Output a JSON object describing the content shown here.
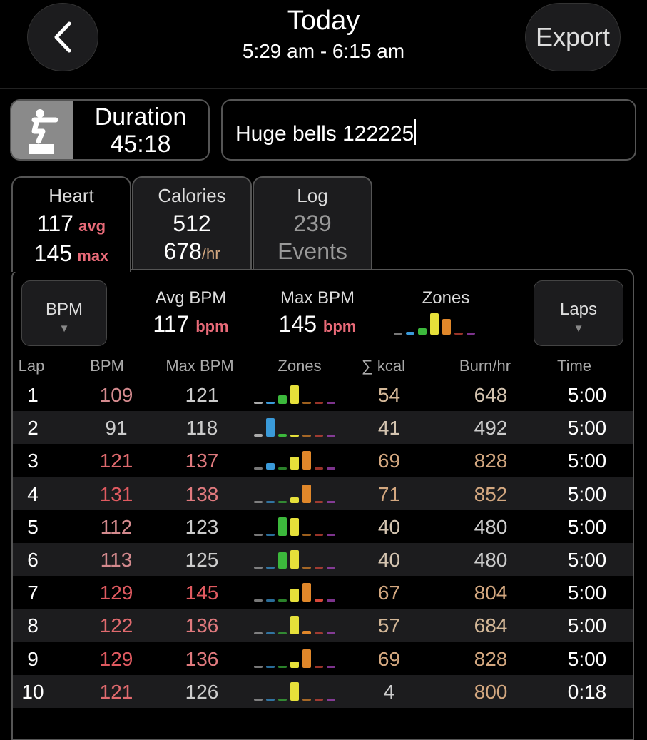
{
  "header": {
    "title": "Today",
    "time_range": "5:29 am - 6:15 am",
    "export_label": "Export"
  },
  "workout": {
    "icon": "squat-icon",
    "duration_label": "Duration",
    "duration": "45:18",
    "name": "Huge bells 122225"
  },
  "tabs": [
    {
      "label": "Heart",
      "line1": "117",
      "line1_unit": "avg",
      "line2": "145",
      "line2_unit": "max",
      "active": true
    },
    {
      "label": "Calories",
      "line1": "512",
      "line2": "678",
      "line2_unit": "/hr"
    },
    {
      "label": "Log",
      "line1": "239",
      "line2": "Events"
    }
  ],
  "summary": {
    "metric_select": "BPM",
    "avg_label": "Avg BPM",
    "avg": "117",
    "avg_unit": "bpm",
    "max_label": "Max BPM",
    "max": "145",
    "max_unit": "bpm",
    "zones_label": "Zones",
    "zones": [
      0,
      0.15,
      0.3,
      1,
      0.75,
      0,
      0
    ],
    "group_select": "Laps"
  },
  "zone_colors": [
    "#aaaaaa",
    "#3a9ad9",
    "#3cb83c",
    "#e6e03a",
    "#e0872a",
    "#d8483a",
    "#b048c8"
  ],
  "table": {
    "headers": [
      "Lap",
      "BPM",
      "Max BPM",
      "Zones",
      "∑ kcal",
      "Burn/hr",
      "Time"
    ],
    "rows": [
      {
        "lap": "1",
        "bpm": "109",
        "max": "121",
        "kcal": "54",
        "burn": "648",
        "time": "5:00",
        "zones": [
          0.05,
          0.05,
          0.45,
          1,
          0,
          0,
          0
        ],
        "bpm_color": "#d48a8e",
        "max_color": "#cccccc",
        "kcal_color": "#d4b898",
        "burn_color": "#d4c4b0"
      },
      {
        "lap": "2",
        "bpm": "91",
        "max": "118",
        "kcal": "41",
        "burn": "492",
        "time": "5:00",
        "zones": [
          0.15,
          1,
          0.15,
          0.1,
          0,
          0,
          0
        ],
        "bpm_color": "#cccccc",
        "max_color": "#cccccc",
        "kcal_color": "#d4c4b0",
        "burn_color": "#cccccc"
      },
      {
        "lap": "3",
        "bpm": "121",
        "max": "137",
        "kcal": "69",
        "burn": "828",
        "time": "5:00",
        "zones": [
          0,
          0.35,
          0,
          0.7,
          1,
          0,
          0
        ],
        "bpm_color": "#e06a6e",
        "max_color": "#e07a7e",
        "kcal_color": "#d4a880",
        "burn_color": "#d4a880"
      },
      {
        "lap": "4",
        "bpm": "131",
        "max": "138",
        "kcal": "71",
        "burn": "852",
        "time": "5:00",
        "zones": [
          0,
          0,
          0,
          0.3,
          1,
          0,
          0
        ],
        "bpm_color": "#e05a60",
        "max_color": "#e07a7e",
        "kcal_color": "#d4a880",
        "burn_color": "#d4a880"
      },
      {
        "lap": "5",
        "bpm": "112",
        "max": "123",
        "kcal": "40",
        "burn": "480",
        "time": "5:00",
        "zones": [
          0,
          0,
          1,
          0.95,
          0,
          0,
          0
        ],
        "bpm_color": "#d48a8e",
        "max_color": "#cccccc",
        "kcal_color": "#d4c4b0",
        "burn_color": "#cccccc"
      },
      {
        "lap": "6",
        "bpm": "113",
        "max": "125",
        "kcal": "40",
        "burn": "480",
        "time": "5:00",
        "zones": [
          0,
          0,
          0.9,
          1,
          0,
          0,
          0
        ],
        "bpm_color": "#d48a8e",
        "max_color": "#cccccc",
        "kcal_color": "#d4c4b0",
        "burn_color": "#cccccc"
      },
      {
        "lap": "7",
        "bpm": "129",
        "max": "145",
        "kcal": "67",
        "burn": "804",
        "time": "5:00",
        "zones": [
          0,
          0,
          0,
          0.7,
          1,
          0.15,
          0
        ],
        "bpm_color": "#e05a60",
        "max_color": "#e05a60",
        "kcal_color": "#d4a880",
        "burn_color": "#d4a880"
      },
      {
        "lap": "8",
        "bpm": "122",
        "max": "136",
        "kcal": "57",
        "burn": "684",
        "time": "5:00",
        "zones": [
          0,
          0,
          0,
          1,
          0.2,
          0,
          0
        ],
        "bpm_color": "#e06a6e",
        "max_color": "#e07a7e",
        "kcal_color": "#d4b898",
        "burn_color": "#d4b898"
      },
      {
        "lap": "9",
        "bpm": "129",
        "max": "136",
        "kcal": "69",
        "burn": "828",
        "time": "5:00",
        "zones": [
          0,
          0,
          0,
          0.35,
          1,
          0,
          0
        ],
        "bpm_color": "#e05a60",
        "max_color": "#e07a7e",
        "kcal_color": "#d4a880",
        "burn_color": "#d4a880"
      },
      {
        "lap": "10",
        "bpm": "121",
        "max": "126",
        "kcal": "4",
        "burn": "800",
        "time": "0:18",
        "zones": [
          0,
          0,
          0,
          1,
          0,
          0,
          0
        ],
        "bpm_color": "#e06a6e",
        "max_color": "#cccccc",
        "kcal_color": "#cccccc",
        "burn_color": "#d4a880"
      }
    ]
  }
}
